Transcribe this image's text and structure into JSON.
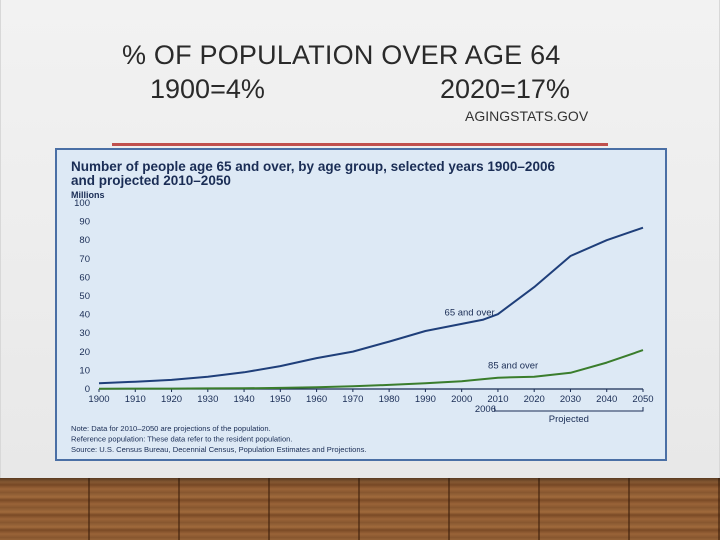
{
  "slide": {
    "title_line1": "% OF POPULATION OVER AGE 64",
    "title_line2a": "1900=4%",
    "title_line2b": "2020=17%",
    "source": "AGINGSTATS.GOV"
  },
  "colors": {
    "series_65": "#1f3f7a",
    "series_85": "#3a7d2c",
    "accent": "#c0504d",
    "chart_bg": "#dde9f5"
  },
  "chart_data": {
    "type": "line",
    "title": "Number of people age 65 and over, by age group, selected years 1900–2006 and projected 2010–2050",
    "title_line1": "Number of people age 65 and over, by age group, selected years 1900–2006",
    "title_line2": "and projected 2010–2050",
    "ylabel": "Millions",
    "ylim": [
      0,
      100
    ],
    "yticks": [
      0,
      10,
      20,
      30,
      40,
      50,
      60,
      70,
      80,
      90,
      100
    ],
    "xlim": [
      1900,
      2050
    ],
    "xticks": [
      "1900",
      "1910",
      "1920",
      "1930",
      "1940",
      "1950",
      "1960",
      "1970",
      "1980",
      "1990",
      "2000",
      "2010",
      "2020",
      "2030",
      "2040",
      "2050"
    ],
    "xtick_extra": "2006",
    "projected_label": "Projected",
    "series": [
      {
        "name": "65 and over",
        "x": [
          1900,
          1910,
          1920,
          1930,
          1940,
          1950,
          1960,
          1970,
          1980,
          1990,
          2000,
          2006,
          2010,
          2020,
          2030,
          2040,
          2050
        ],
        "values": [
          3.1,
          3.9,
          4.9,
          6.6,
          9.0,
          12.3,
          16.6,
          20.1,
          25.5,
          31.2,
          35.0,
          37.3,
          40.2,
          54.8,
          71.5,
          80.0,
          86.7
        ]
      },
      {
        "name": "85 and over",
        "x": [
          1900,
          1910,
          1920,
          1930,
          1940,
          1950,
          1960,
          1970,
          1980,
          1990,
          2000,
          2006,
          2010,
          2020,
          2030,
          2040,
          2050
        ],
        "values": [
          0.1,
          0.2,
          0.2,
          0.3,
          0.4,
          0.6,
          0.9,
          1.5,
          2.2,
          3.1,
          4.2,
          5.3,
          6.1,
          6.6,
          8.7,
          14.2,
          20.9
        ]
      }
    ],
    "notes": [
      "Note: Data for 2010–2050 are projections of the population.",
      "Reference population: These data refer to the resident population.",
      "Source: U.S. Census Bureau, Decennial Census, Population Estimates and Projections."
    ]
  }
}
